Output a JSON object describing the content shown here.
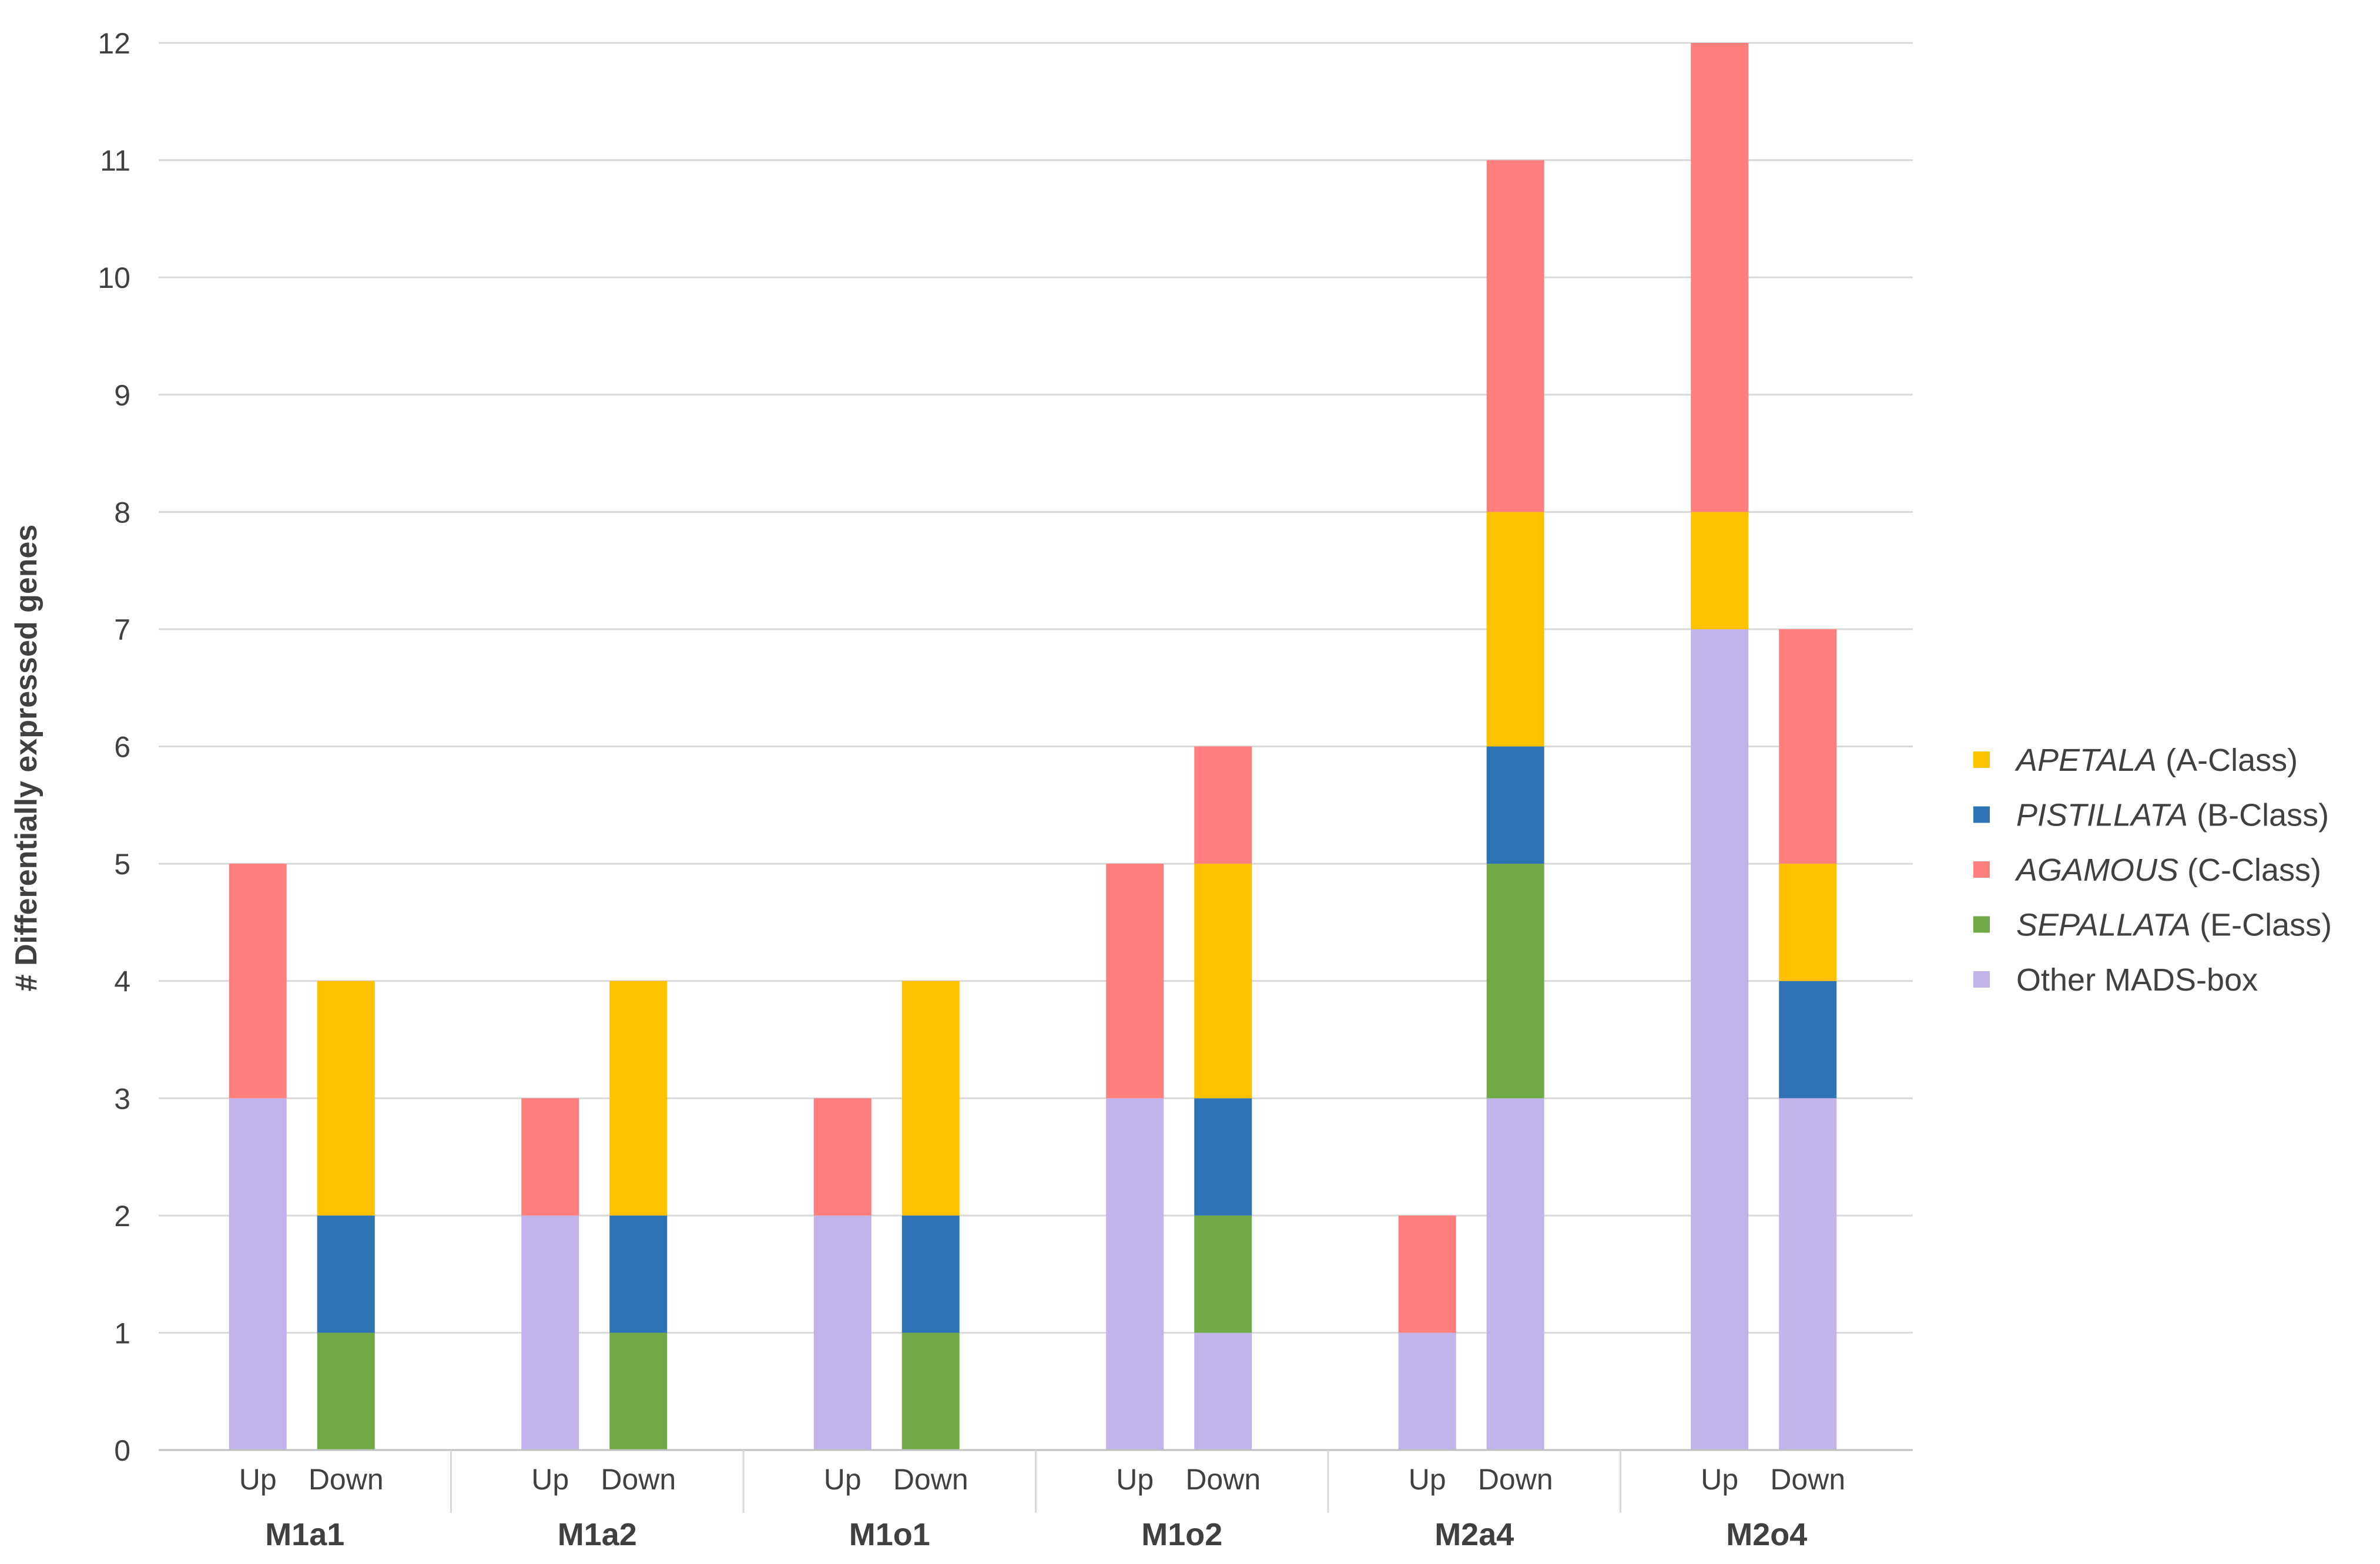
{
  "chart_data": {
    "type": "bar",
    "stacked": true,
    "title": "",
    "ylabel": "# Differentially expressed genes",
    "xlabel": "",
    "ylim": [
      0,
      12
    ],
    "y_ticks": [
      "0",
      "1",
      "2",
      "3",
      "4",
      "5",
      "6",
      "7",
      "8",
      "9",
      "10",
      "11",
      "12"
    ],
    "groups": [
      "M1a1",
      "M1a2",
      "M1o1",
      "M1o2",
      "M2a4",
      "M2o4"
    ],
    "subcategories": [
      "Up",
      "Down"
    ],
    "categories": [
      "M1a1 Up",
      "M1a1 Down",
      "M1a2 Up",
      "M1a2 Down",
      "M1o1 Up",
      "M1o1 Down",
      "M1o2 Up",
      "M1o2 Down",
      "M2a4 Up",
      "M2a4 Down",
      "M2o4 Up",
      "M2o4 Down"
    ],
    "series": [
      {
        "name": "Other MADS-box",
        "color": "#c3b3eb",
        "values": [
          3,
          0,
          2,
          0,
          2,
          0,
          3,
          1,
          1,
          3,
          7,
          3
        ]
      },
      {
        "name": "SEPALLATA (E-Class)",
        "color": "#6faa46",
        "values": [
          0,
          1,
          0,
          1,
          0,
          1,
          0,
          1,
          0,
          2,
          0,
          0
        ]
      },
      {
        "name": "PISTILLATA (B-Class)",
        "color": "#2e74b5",
        "values": [
          0,
          1,
          0,
          1,
          0,
          1,
          0,
          1,
          0,
          1,
          0,
          1
        ]
      },
      {
        "name": "APETALA (A-Class)",
        "color": "#ffc000",
        "values": [
          0,
          2,
          0,
          2,
          0,
          2,
          0,
          2,
          0,
          2,
          1,
          1
        ]
      },
      {
        "name": "AGAMOUS (C-Class)",
        "color": "#ff7f7f",
        "values": [
          2,
          0,
          1,
          0,
          1,
          0,
          2,
          1,
          1,
          3,
          4,
          2
        ]
      }
    ],
    "legend": [
      {
        "italic": "APETALA",
        "rest": " (A-Class)",
        "color": "#ffc000"
      },
      {
        "italic": "PISTILLATA",
        "rest": " (B-Class)",
        "color": "#2e74b5"
      },
      {
        "italic": "AGAMOUS",
        "rest": " (C-Class)",
        "color": "#ff7f7f"
      },
      {
        "italic": "SEPALLATA",
        "rest": " (E-Class)",
        "color": "#6faa46"
      },
      {
        "italic": "",
        "rest": "Other MADS-box",
        "color": "#c3b3eb"
      }
    ],
    "legend_position": "right",
    "grid": true
  }
}
